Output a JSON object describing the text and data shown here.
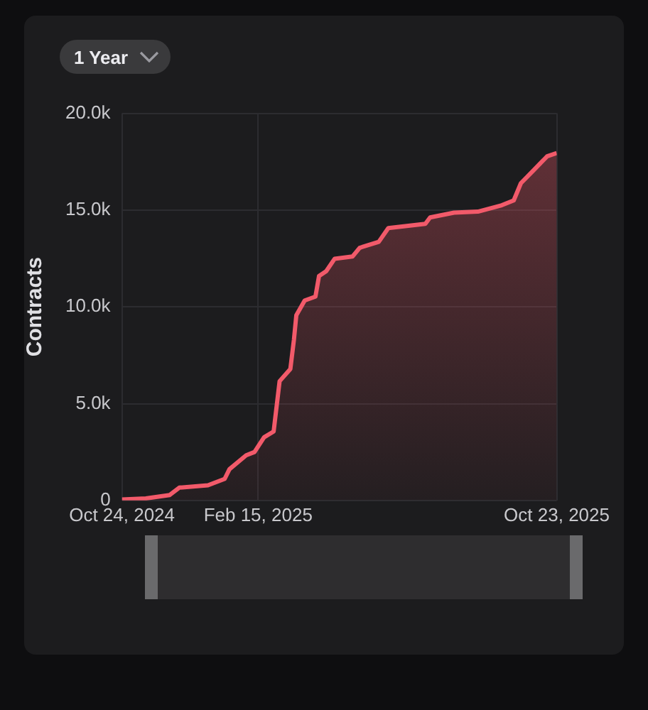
{
  "chart_data": {
    "type": "area",
    "ylabel": "Contracts",
    "annotations": [
      "1 Year"
    ],
    "x": [
      "2024-10-24",
      "2024-11-13",
      "2024-12-03",
      "2024-12-11",
      "2025-01-04",
      "2025-01-18",
      "2025-01-22",
      "2025-02-05",
      "2025-02-12",
      "2025-02-20",
      "2025-02-28",
      "2025-03-05",
      "2025-03-14",
      "2025-03-17",
      "2025-03-19",
      "2025-03-26",
      "2025-04-04",
      "2025-04-07",
      "2025-04-13",
      "2025-04-20",
      "2025-05-05",
      "2025-05-11",
      "2025-05-27",
      "2025-06-04",
      "2025-07-05",
      "2025-07-09",
      "2025-07-29",
      "2025-08-18",
      "2025-09-07",
      "2025-09-17",
      "2025-09-23",
      "2025-10-03",
      "2025-10-15",
      "2025-10-23"
    ],
    "series": [
      {
        "color": "#f25a6a",
        "values": [
          50,
          100,
          280,
          660,
          780,
          1110,
          1610,
          2330,
          2500,
          3260,
          3560,
          6160,
          6790,
          8310,
          9570,
          10330,
          10530,
          11590,
          11840,
          12480,
          12600,
          13050,
          13360,
          14070,
          14290,
          14620,
          14870,
          14920,
          15250,
          15500,
          16390,
          17020,
          17780,
          17950
        ]
      }
    ],
    "xlim": [
      "2024-10-24",
      "2025-10-23"
    ],
    "xticks": [
      {
        "value": "2024-10-24",
        "label": "Oct 24, 2024"
      },
      {
        "value": "2025-02-15",
        "label": "Feb 15, 2025"
      },
      {
        "value": "2025-10-23",
        "label": "Oct 23, 2025"
      }
    ],
    "ylim": [
      0,
      20000
    ],
    "yticks": [
      0,
      {
        "value": 5000,
        "label": "5.0k"
      },
      {
        "value": 10000,
        "label": "10.0k"
      },
      {
        "value": 15000,
        "label": "15.0k"
      },
      {
        "value": 20000,
        "label": "20.0k"
      }
    ],
    "grid": true,
    "marker": "none",
    "line_style": "solid"
  }
}
